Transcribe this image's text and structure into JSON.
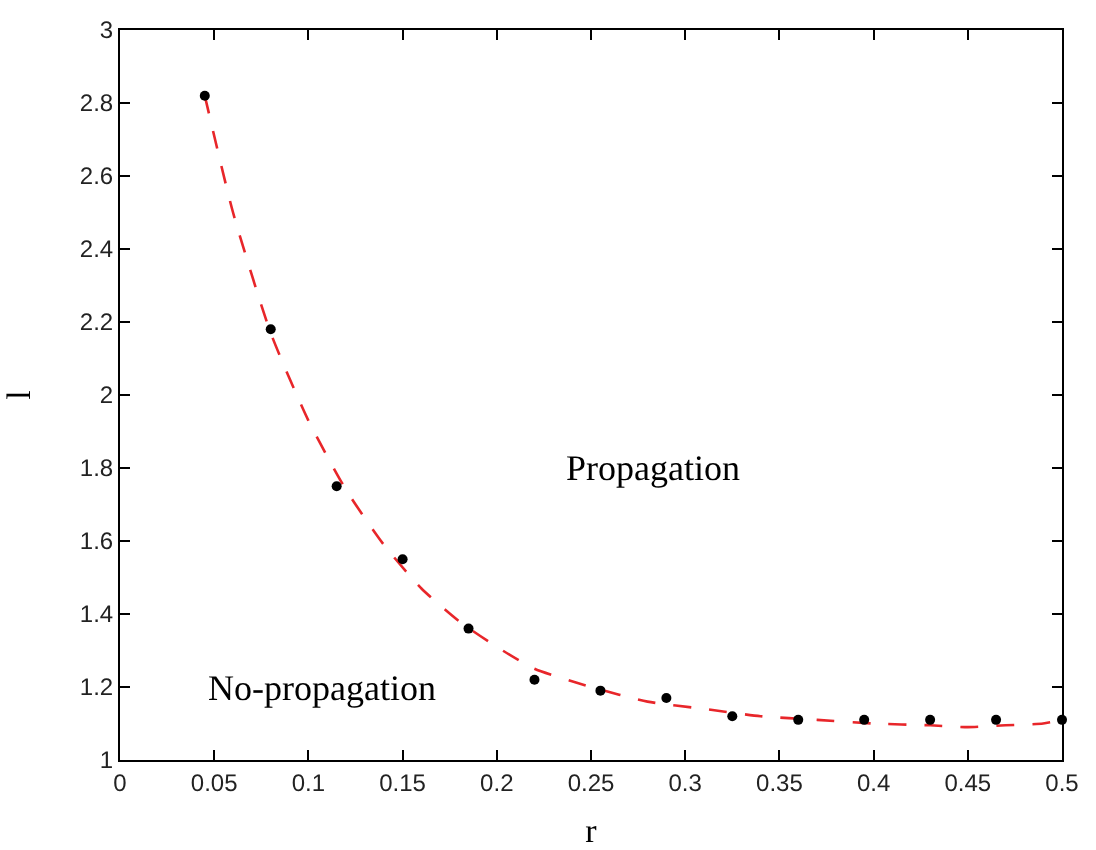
{
  "chart_data": {
    "type": "scatter",
    "xlabel": "r",
    "ylabel": "l",
    "series": [
      {
        "type": "scatter",
        "color": "#000000",
        "marker": "circle",
        "x": [
          0.045,
          0.08,
          0.115,
          0.15,
          0.185,
          0.22,
          0.255,
          0.29,
          0.325,
          0.36,
          0.395,
          0.43,
          0.465,
          0.5
        ],
        "values": [
          2.82,
          2.18,
          1.75,
          1.55,
          1.36,
          1.22,
          1.19,
          1.17,
          1.12,
          1.11,
          1.11,
          1.11,
          1.11,
          1.11
        ]
      },
      {
        "type": "line",
        "color": "#e8262a",
        "line_style": "dashed",
        "marker": "none",
        "x": [
          0.045,
          0.06,
          0.08,
          0.1,
          0.12,
          0.14,
          0.16,
          0.18,
          0.2,
          0.22,
          0.25,
          0.28,
          0.31,
          0.34,
          0.37,
          0.4,
          0.43,
          0.45,
          0.47,
          0.49,
          0.5
        ],
        "values": [
          2.82,
          2.5,
          2.17,
          1.93,
          1.74,
          1.59,
          1.47,
          1.38,
          1.31,
          1.25,
          1.2,
          1.16,
          1.14,
          1.12,
          1.11,
          1.1,
          1.095,
          1.09,
          1.095,
          1.1,
          1.11
        ]
      }
    ],
    "annotations": [
      "Propagation",
      "No-propagation"
    ],
    "xlim": [
      0,
      0.5
    ],
    "xticks": [
      0,
      0.05,
      0.1,
      0.15,
      0.2,
      0.25,
      0.3,
      0.35,
      0.4,
      0.45,
      0.5
    ],
    "ylim": [
      1,
      3
    ],
    "yticks": [
      1,
      1.2,
      1.4,
      1.6,
      1.8,
      2,
      2.2,
      2.4,
      2.6,
      2.8,
      3
    ],
    "grid": false
  }
}
